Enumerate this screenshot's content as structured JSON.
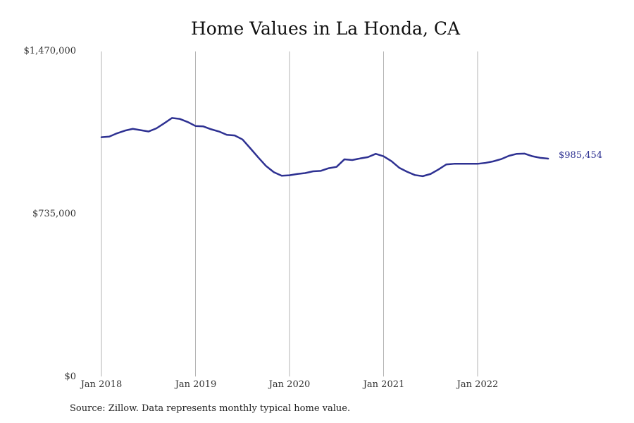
{
  "chart_data": {
    "type": "line",
    "title": "Home Values in La Honda, CA",
    "xlabel": "",
    "ylabel": "",
    "ylim": [
      0,
      1470000
    ],
    "yticks": [
      "$1,470,000",
      "$735,000",
      "$0"
    ],
    "xticks": [
      "Jan 2018",
      "Jan 2019",
      "Jan 2020",
      "Jan 2021",
      "Jan 2022"
    ],
    "grid": "vertical",
    "end_label": "$985,454",
    "line_color": "#2e3192",
    "series": [
      {
        "name": "",
        "x": [
          "2018-01",
          "2018-02",
          "2018-03",
          "2018-04",
          "2018-05",
          "2018-06",
          "2018-07",
          "2018-08",
          "2018-09",
          "2018-10",
          "2018-11",
          "2018-12",
          "2019-01",
          "2019-02",
          "2019-03",
          "2019-04",
          "2019-05",
          "2019-06",
          "2019-07",
          "2019-08",
          "2019-09",
          "2019-10",
          "2019-11",
          "2019-12",
          "2020-01",
          "2020-02",
          "2020-03",
          "2020-04",
          "2020-05",
          "2020-06",
          "2020-07",
          "2020-08",
          "2020-09",
          "2020-10",
          "2020-11",
          "2020-12",
          "2021-01",
          "2021-02",
          "2021-03",
          "2021-04",
          "2021-05",
          "2021-06",
          "2021-07",
          "2021-08",
          "2021-09",
          "2021-10",
          "2021-11",
          "2021-12",
          "2022-01",
          "2022-02",
          "2022-03",
          "2022-04",
          "2022-05",
          "2022-06",
          "2022-07",
          "2022-08",
          "2022-09",
          "2022-10"
        ],
        "values": [
          1082000,
          1085000,
          1100000,
          1112000,
          1120000,
          1114000,
          1108000,
          1122000,
          1145000,
          1169000,
          1165000,
          1151000,
          1133000,
          1131000,
          1118000,
          1108000,
          1093000,
          1090000,
          1072000,
          1032000,
          991000,
          952000,
          924000,
          908000,
          910000,
          916000,
          920000,
          928000,
          930000,
          942000,
          948000,
          982000,
          979000,
          986000,
          992000,
          1007000,
          996000,
          974000,
          944000,
          926000,
          911000,
          906000,
          916000,
          936000,
          959000,
          962000,
          962000,
          962000,
          962000,
          966000,
          973000,
          983000,
          998000,
          1007000,
          1008000,
          996000,
          989000,
          985454
        ]
      }
    ]
  },
  "source_note": "Source: Zillow. Data represents monthly typical home value."
}
